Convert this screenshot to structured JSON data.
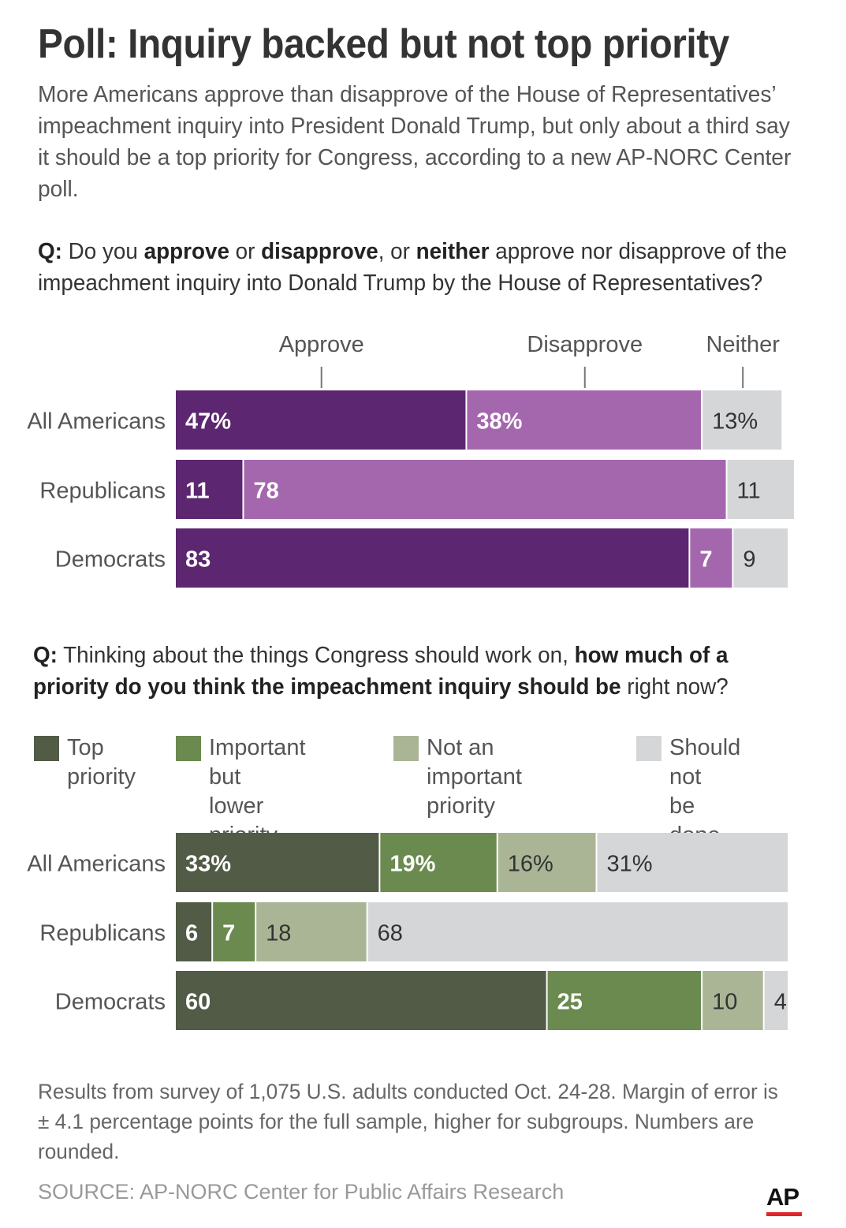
{
  "title": "Poll: Inquiry backed but not top priority",
  "intro": "More Americans approve than disapprove of the House of Representatives’ impeachment inquiry into President Donald Trump, but only about a third say it should be a top priority for Congress, according to a new AP-NORC Center poll.",
  "question1": {
    "q": "Q:",
    "parts": [
      "Do you ",
      "approve",
      " or ",
      "disapprove",
      ", or ",
      "neither",
      " approve nor disapprove of the impeachment inquiry into Donald Trump by the House of Representatives?"
    ]
  },
  "question2": {
    "q": "Q:",
    "parts": [
      "Thinking about the things Congress should work on, ",
      "how much of a priority do you think the impeachment inquiry should be",
      " right now?"
    ]
  },
  "chart_data": [
    {
      "type": "bar",
      "orientation": "horizontal",
      "stacked": true,
      "categories": [
        "All Americans",
        "Republicans",
        "Democrats"
      ],
      "series": [
        {
          "name": "Approve",
          "values": [
            47,
            11,
            83
          ],
          "labels": [
            "47%",
            "11",
            "83"
          ],
          "color": "#5c2670",
          "label_color": "#ffffff",
          "label_bold": true
        },
        {
          "name": "Disapprove",
          "values": [
            38,
            78,
            7
          ],
          "labels": [
            "38%",
            "78",
            "7"
          ],
          "color": "#a467ae",
          "label_color": "#ffffff",
          "label_bold": true
        },
        {
          "name": "Neither",
          "values": [
            13,
            11,
            9
          ],
          "labels": [
            "13%",
            "11",
            "9"
          ],
          "color": "#d5d6d8",
          "label_color": "#333333",
          "label_bold": false
        }
      ],
      "legend_position": "top",
      "xlim": [
        0,
        100
      ]
    },
    {
      "type": "bar",
      "orientation": "horizontal",
      "stacked": true,
      "categories": [
        "All Americans",
        "Republicans",
        "Democrats"
      ],
      "series": [
        {
          "name": "Top priority",
          "values": [
            33,
            6,
            60
          ],
          "labels": [
            "33%",
            "6",
            "60"
          ],
          "color": "#515b46",
          "label_color": "#ffffff",
          "label_bold": true
        },
        {
          "name": "Important but lower priority",
          "values": [
            19,
            7,
            25
          ],
          "labels": [
            "19%",
            "7",
            "25"
          ],
          "color": "#6a8a4f",
          "label_color": "#ffffff",
          "label_bold": true
        },
        {
          "name": "Not an important priority",
          "values": [
            16,
            18,
            10
          ],
          "labels": [
            "16%",
            "18",
            "10"
          ],
          "color": "#aab596",
          "label_color": "#333333",
          "label_bold": false
        },
        {
          "name": "Should not be done",
          "values": [
            31,
            68,
            4
          ],
          "labels": [
            "31%",
            "68",
            "4"
          ],
          "color": "#d5d6d8",
          "label_color": "#333333",
          "label_bold": false
        }
      ],
      "legend_position": "top",
      "xlim": [
        0,
        100
      ]
    }
  ],
  "legend2": [
    {
      "text": "Top\npriority",
      "color": "#515b46"
    },
    {
      "text": "Important but\nlower priority",
      "color": "#6a8a4f"
    },
    {
      "text": "Not an important\npriority",
      "color": "#aab596"
    },
    {
      "text": "Should not\nbe done",
      "color": "#d5d6d8"
    }
  ],
  "footnote": "Results from survey of 1,075 U.S. adults conducted Oct. 24-28. Margin of error is ± 4.1 percentage points for the full sample, higher for subgroups. Numbers are rounded.",
  "source": "SOURCE: AP-NORC Center for Public Affairs Research",
  "logo": "AP"
}
